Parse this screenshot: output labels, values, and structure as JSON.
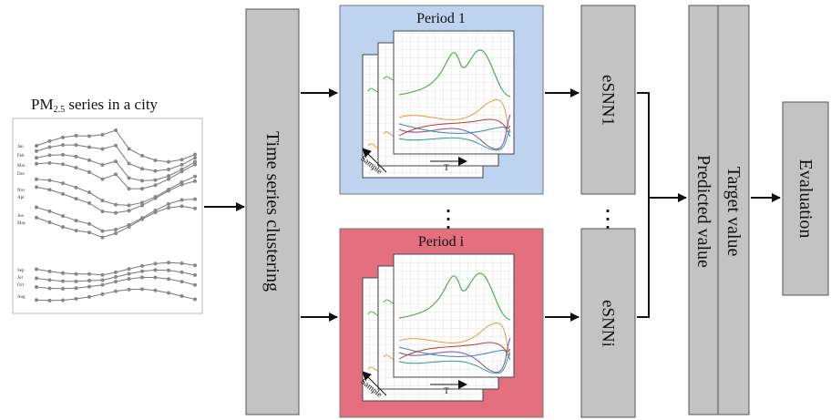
{
  "pm_panel": {
    "title_prefix": "PM",
    "title_subscript": "2.5",
    "title_suffix": " series in a city",
    "month_labels": [
      "Jan",
      "Feb",
      "Mar",
      "Dec",
      "Nov",
      "Apr",
      "Jun",
      "May",
      "Sep",
      "Jul",
      "Oct",
      "Aug"
    ]
  },
  "clustering": {
    "label": "Time series clustering"
  },
  "periods": [
    {
      "title": "Period 1",
      "bg_color": "#bdd3ef",
      "axis_x_label": "T",
      "axis_depth_label": "Sample"
    },
    {
      "title": "Period i",
      "bg_color": "#e46f7e",
      "axis_x_label": "T",
      "axis_depth_label": "Sample"
    }
  ],
  "ellipsis": "⋮",
  "esnn": {
    "top_label": "eSNN1",
    "bottom_label": "eSNNi"
  },
  "output": {
    "predicted_label": "Predicted value",
    "target_label": "Target value"
  },
  "evaluation": {
    "label": "Evaluation"
  },
  "colors": {
    "box_gray": "#c3c3c3",
    "border": "#555555",
    "arrow": "#111111",
    "series": [
      "#4caf50",
      "#e89a3c",
      "#7b4fa6",
      "#3b7fc4",
      "#c0392b",
      "#2a9d8f"
    ]
  }
}
